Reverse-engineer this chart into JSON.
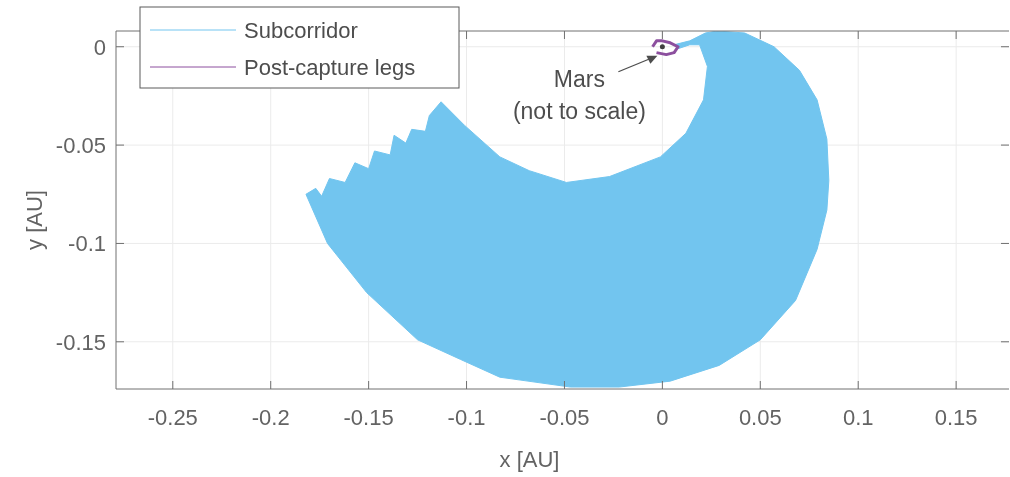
{
  "chart_data": {
    "type": "line",
    "xlabel": "x [AU]",
    "ylabel": "y [AU]",
    "xlim": [
      -0.279,
      0.177
    ],
    "ylim": [
      -0.174,
      0.008
    ],
    "xticks": [
      -0.25,
      -0.2,
      -0.15,
      -0.1,
      -0.05,
      0,
      0.05,
      0.1,
      0.15
    ],
    "yticks": [
      -0.15,
      -0.1,
      -0.05,
      0
    ],
    "grid": true,
    "legend": "top left",
    "annotations": [
      "Mars\n(not to scale)"
    ],
    "series": [
      {
        "name": "Subcorridor",
        "type": "area",
        "color": "#72c5ef",
        "x": [
          0.006,
          0.014,
          0.022,
          0.028,
          0.042,
          0.057,
          0.07,
          0.079,
          0.084,
          0.085,
          0.084,
          0.079,
          0.068,
          0.05,
          0.029,
          0.004,
          -0.022,
          -0.047,
          -0.083,
          -0.103,
          -0.125,
          -0.151,
          -0.171,
          -0.182,
          -0.177,
          -0.174,
          -0.17,
          -0.162,
          -0.157,
          -0.15,
          -0.147,
          -0.139,
          -0.137,
          -0.131,
          -0.128,
          -0.121,
          -0.119,
          -0.113,
          -0.101,
          -0.083,
          -0.068,
          -0.049,
          -0.027,
          -0.001,
          0.012,
          0.021,
          0.023,
          0.019,
          0.014,
          0.008
        ],
        "values": [
          0.001,
          0.003,
          0.007,
          0.008,
          0.007,
          0,
          -0.012,
          -0.027,
          -0.047,
          -0.068,
          -0.083,
          -0.103,
          -0.129,
          -0.149,
          -0.162,
          -0.17,
          -0.173,
          -0.173,
          -0.168,
          -0.159,
          -0.149,
          -0.125,
          -0.1,
          -0.075,
          -0.072,
          -0.076,
          -0.067,
          -0.069,
          -0.059,
          -0.062,
          -0.053,
          -0.055,
          -0.045,
          -0.049,
          -0.042,
          -0.043,
          -0.035,
          -0.028,
          -0.04,
          -0.056,
          -0.063,
          -0.069,
          -0.066,
          -0.056,
          -0.044,
          -0.027,
          -0.01,
          0.001,
          0.001,
          -0.001
        ]
      },
      {
        "name": "Post-capture legs",
        "color": "#8c4f9e",
        "x": [
          -0.005,
          -0.003,
          0,
          0.004,
          0.008,
          0.006,
          0.002,
          -0.003
        ],
        "values": [
          0,
          0.003,
          0.003,
          0.002,
          0,
          -0.003,
          -0.004,
          -0.003
        ]
      }
    ]
  }
}
